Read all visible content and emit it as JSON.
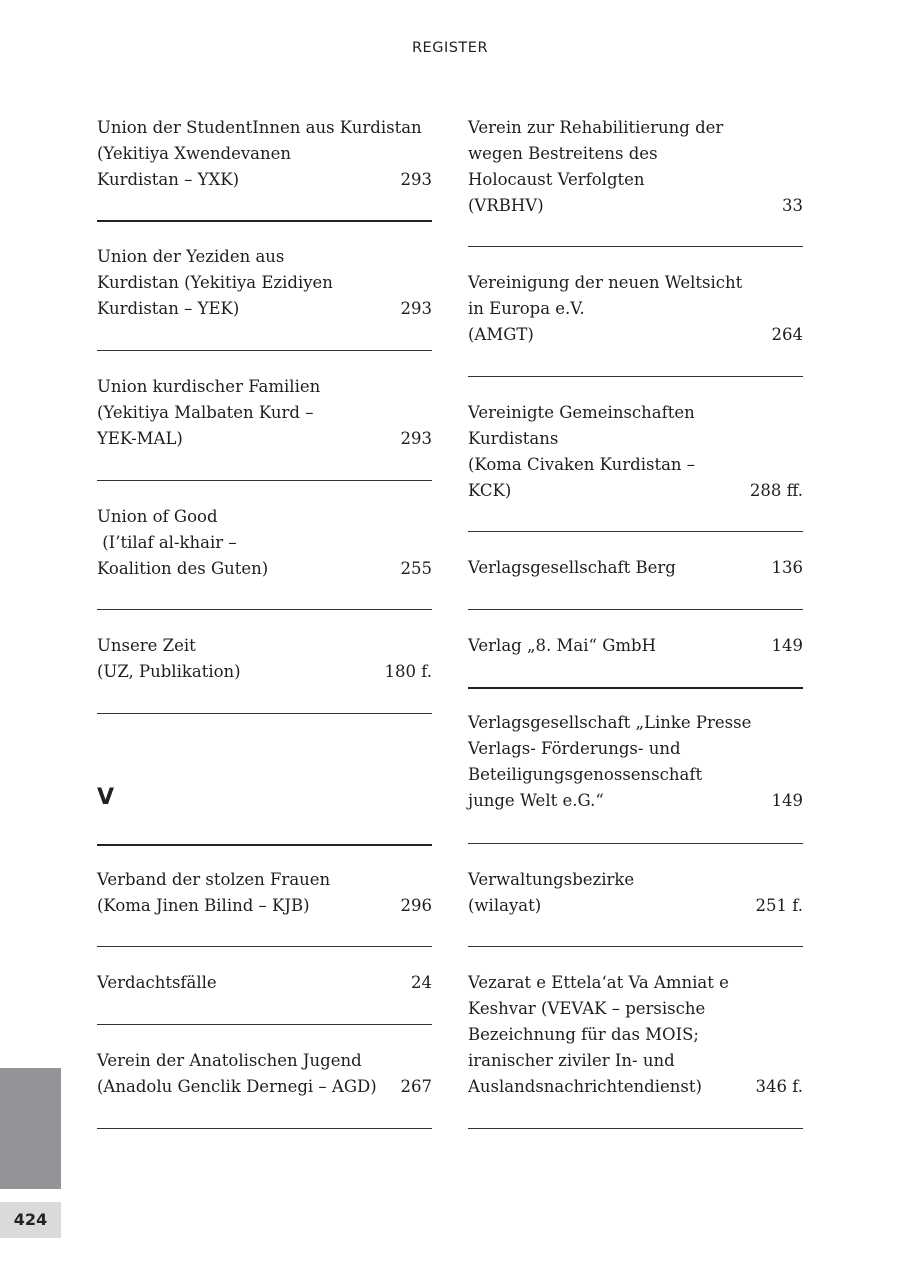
{
  "header": {
    "title": "REGISTER"
  },
  "section_letter": "V",
  "page_number": "424",
  "left_column": [
    {
      "lines": [
        "Union der StudentInnen aus Kurdistan",
        "(Yekitiya Xwendevanen",
        "Kurdistan – YXK)"
      ],
      "page": "293"
    },
    {
      "lines": [
        "Union der Yeziden aus",
        "Kurdistan (Yekitiya Ezidiyen",
        "Kurdistan – YEK)"
      ],
      "page": "293"
    },
    {
      "lines": [
        "Union kurdischer Familien",
        "(Yekitiya Malbaten Kurd –",
        "YEK-MAL)"
      ],
      "page": "293"
    },
    {
      "lines": [
        "Union of Good",
        " (I’tilaf al-khair –",
        "Koalition des Guten)"
      ],
      "page": "255"
    },
    {
      "lines": [
        "Unsere Zeit",
        "(UZ, Publikation)"
      ],
      "page": "180 f."
    },
    {
      "lines": [
        "Verband der stolzen Frauen",
        "(Koma Jinen Bilind – KJB)"
      ],
      "page": "296"
    },
    {
      "lines": [
        "Verdachtsfälle"
      ],
      "page": "24"
    },
    {
      "lines": [
        "Verein der Anatolischen Jugend",
        "(Anadolu Genclik Dernegi – AGD)"
      ],
      "page": "267"
    }
  ],
  "right_column": [
    {
      "lines": [
        "Verein zur Rehabilitierung der",
        "wegen Bestreitens des",
        "Holocaust Verfolgten",
        "(VRBHV)"
      ],
      "page": "33"
    },
    {
      "lines": [
        "Vereinigung der neuen Weltsicht",
        "in Europa e.V.",
        "(AMGT)"
      ],
      "page": "264"
    },
    {
      "lines": [
        "Vereinigte Gemeinschaften",
        "Kurdistans",
        "(Koma Civaken Kurdistan –",
        "KCK)"
      ],
      "page": "288 ff."
    },
    {
      "lines": [
        "Verlagsgesellschaft Berg"
      ],
      "page": "136"
    },
    {
      "lines": [
        "Verlag „8. Mai“ GmbH"
      ],
      "page": "149"
    },
    {
      "lines": [
        "Verlagsgesellschaft „Linke Presse",
        "Verlags- Förderungs- und",
        "Beteiligungsgenossenschaft",
        "junge Welt e.G.“"
      ],
      "page": "149"
    },
    {
      "lines": [
        "Verwaltungsbezirke",
        "(wilayat)"
      ],
      "page": "251 f."
    },
    {
      "lines": [
        "Vezarat e Ettela‘at Va Amniat e",
        "Keshvar (VEVAK – persische",
        "Bezeichnung für das MOIS;",
        "iranischer ziviler In- und",
        "Auslandsnachrichtendienst)"
      ],
      "page": "346 f."
    }
  ]
}
